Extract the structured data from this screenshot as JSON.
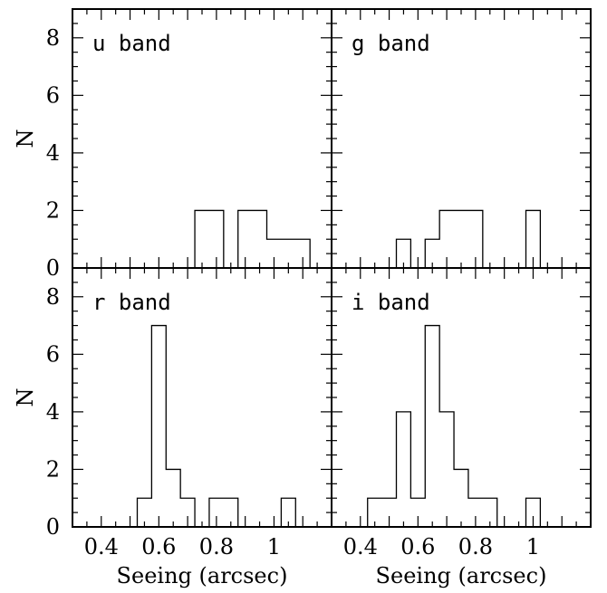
{
  "chart_data": {
    "type": "histogram",
    "xlabel": "Seeing (arcsec)",
    "ylabel": "N",
    "xlim": [
      0.3,
      1.2
    ],
    "ylim": [
      0,
      9
    ],
    "xticks": [
      0.4,
      0.6,
      0.8,
      1
    ],
    "xtick_labels": [
      "0.4",
      "0.6",
      "0.8",
      "1"
    ],
    "yticks": [
      0,
      2,
      4,
      6,
      8
    ],
    "ytick_labels": [
      "0",
      "2",
      "4",
      "6",
      "8"
    ],
    "panels": [
      {
        "label": "u band",
        "bin_edges": [
          0.725,
          0.825,
          0.875,
          0.975,
          1.125
        ],
        "counts": [
          2,
          0,
          2,
          1
        ]
      },
      {
        "label": "g band",
        "bin_edges": [
          0.525,
          0.575,
          0.625,
          0.675,
          0.825,
          0.975,
          1.025
        ],
        "counts": [
          1,
          0,
          1,
          2,
          0,
          2
        ]
      },
      {
        "label": "r band",
        "bin_edges": [
          0.525,
          0.575,
          0.625,
          0.675,
          0.725,
          0.775,
          0.875,
          1.025,
          1.075
        ],
        "counts": [
          1,
          7,
          2,
          1,
          0,
          1,
          0,
          1
        ]
      },
      {
        "label": "i band",
        "bin_edges": [
          0.425,
          0.525,
          0.575,
          0.625,
          0.675,
          0.725,
          0.775,
          0.875,
          0.975,
          1.025
        ],
        "counts": [
          1,
          4,
          1,
          7,
          4,
          2,
          1,
          0,
          1
        ]
      }
    ]
  }
}
